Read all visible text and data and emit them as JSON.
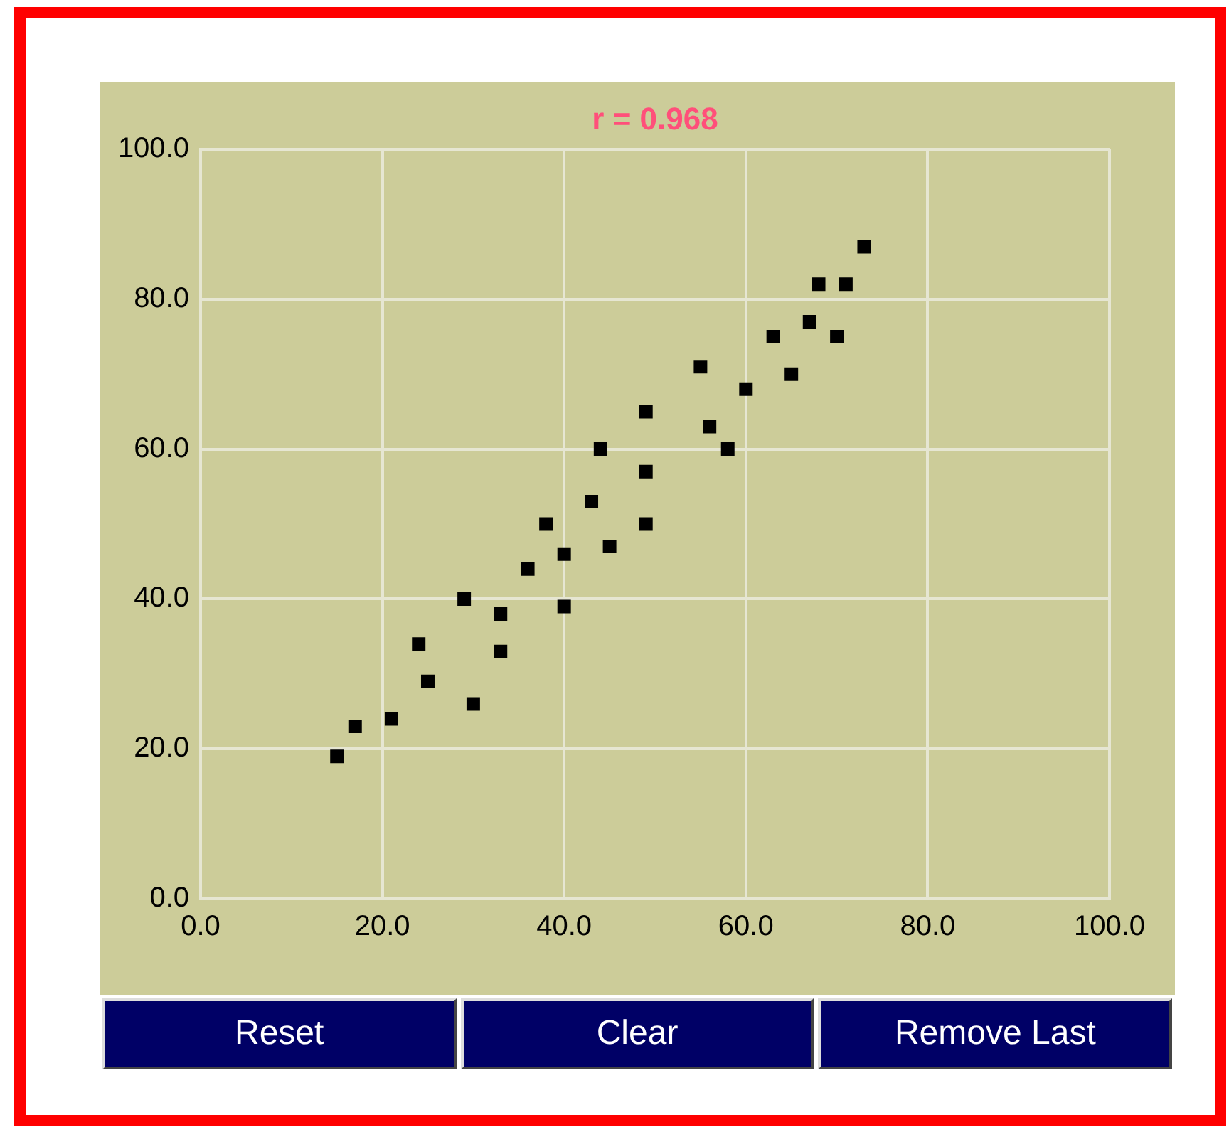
{
  "chart_data": {
    "type": "scatter",
    "title": "r = 0.968",
    "marker": "square",
    "grid": true,
    "legend": false,
    "annotations": [
      "Reset",
      "Clear",
      "Remove Last"
    ],
    "xlim": [
      0,
      100
    ],
    "ylim": [
      0,
      100
    ],
    "xticks": [
      {
        "value": 0,
        "label": "0.0"
      },
      {
        "value": 20,
        "label": "20.0"
      },
      {
        "value": 40,
        "label": "40.0"
      },
      {
        "value": 60,
        "label": "60.0"
      },
      {
        "value": 80,
        "label": "80.0"
      },
      {
        "value": 100,
        "label": "100.0"
      }
    ],
    "yticks": [
      {
        "value": 0,
        "label": "0.0"
      },
      {
        "value": 20,
        "label": "20.0"
      },
      {
        "value": 40,
        "label": "40.0"
      },
      {
        "value": 60,
        "label": "60.0"
      },
      {
        "value": 80,
        "label": "80.0"
      },
      {
        "value": 100,
        "label": "100.0"
      }
    ],
    "series": [
      {
        "color": "#000000",
        "x": [
          15,
          17,
          21,
          24,
          25,
          29,
          30,
          33,
          33,
          36,
          38,
          40,
          40,
          43,
          44,
          45,
          49,
          49,
          49,
          55,
          56,
          58,
          60,
          63,
          65,
          67,
          68,
          70,
          71,
          73
        ],
        "values": [
          19,
          23,
          24,
          34,
          29,
          40,
          26,
          38,
          33,
          44,
          50,
          46,
          39,
          53,
          60,
          47,
          65,
          50,
          57,
          71,
          63,
          60,
          68,
          75,
          70,
          77,
          82,
          75,
          82,
          87
        ]
      }
    ]
  }
}
